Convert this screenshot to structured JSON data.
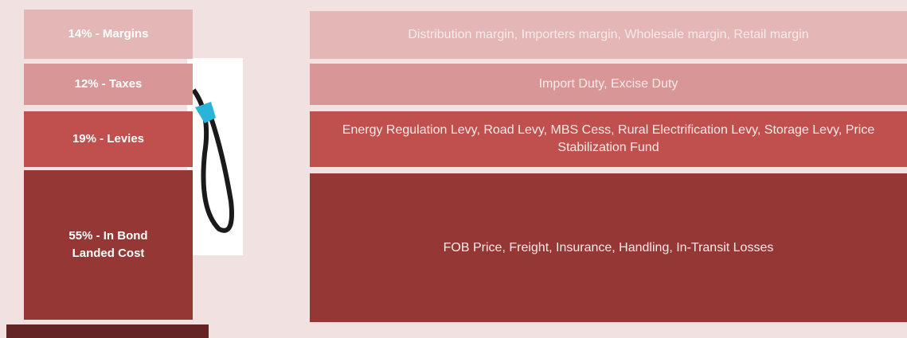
{
  "rows": [
    {
      "label": "14% - Margins",
      "description": "Distribution margin, Importers margin, Wholesale margin, Retail margin"
    },
    {
      "label": "12% - Taxes",
      "description": "Import Duty, Excise Duty"
    },
    {
      "label": "19% - Levies",
      "description": "Energy Regulation Levy, Road Levy, MBS Cess, Rural Electrification Levy, Storage Levy, Price Stabilization Fund"
    },
    {
      "label": "55% - In Bond Landed Cost",
      "description": "FOB Price, Freight, Insurance, Handling, In-Transit Losses"
    }
  ]
}
